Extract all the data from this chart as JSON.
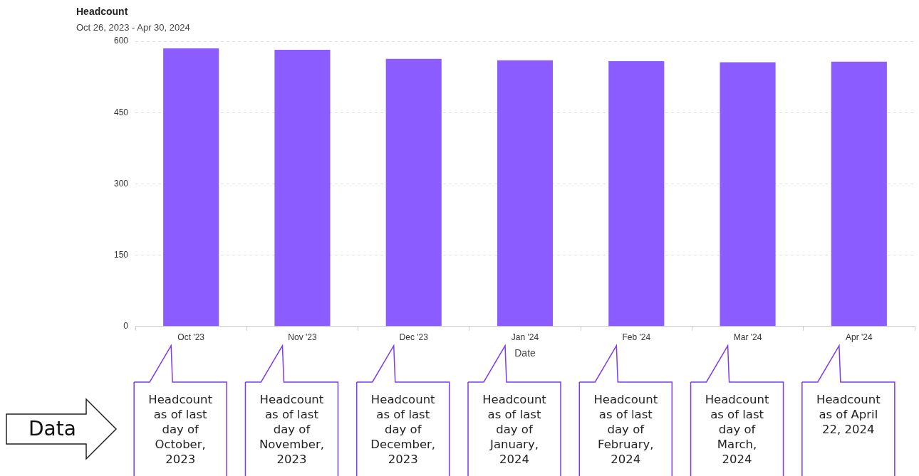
{
  "chart_data": {
    "type": "bar",
    "title": "Headcount",
    "subtitle": "Oct 26, 2023 - Apr 30, 2024",
    "xlabel": "Date",
    "categories": [
      "Oct '23",
      "Nov '23",
      "Dec '23",
      "Jan '24",
      "Feb '24",
      "Mar '24",
      "Apr '24"
    ],
    "values": [
      585,
      582,
      563,
      560,
      558,
      556,
      557
    ],
    "color": "#8b5cff",
    "ylim": [
      0,
      600
    ],
    "yticks": [
      0,
      150,
      300,
      450,
      600
    ],
    "grid": "y",
    "annotations": [
      "Headcount as of last day of October, 2023",
      "Headcount as of last day of November, 2023",
      "Headcount as of last day of December, 2023",
      "Headcount as of last day of January, 2024",
      "Headcount as of last day of February, 2024",
      "Headcount as of last day of March, 2024",
      "Headcount as of April 22, 2024",
      "Data"
    ]
  }
}
